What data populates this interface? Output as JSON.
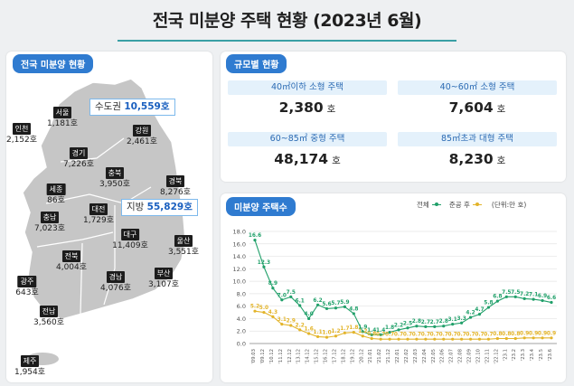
{
  "title": "전국 미분양 주택 현황 (2023년 6월)",
  "map_panel": {
    "label": "전국 미분양 현황",
    "regions": [
      {
        "name": "서울",
        "value": "1,181호"
      },
      {
        "name": "인천",
        "value": "2,152호"
      },
      {
        "name": "강원",
        "value": "2,461호"
      },
      {
        "name": "경기",
        "value": "7,226호"
      },
      {
        "name": "충북",
        "value": "3,950호"
      },
      {
        "name": "세종",
        "value": "86호"
      },
      {
        "name": "경북",
        "value": "8,276호"
      },
      {
        "name": "충남",
        "value": "7,023호"
      },
      {
        "name": "대전",
        "value": "1,729호"
      },
      {
        "name": "대구",
        "value": "11,409호"
      },
      {
        "name": "울산",
        "value": "3,551호"
      },
      {
        "name": "전북",
        "value": "4,004호"
      },
      {
        "name": "경남",
        "value": "4,076호"
      },
      {
        "name": "부산",
        "value": "3,107호"
      },
      {
        "name": "광주",
        "value": "643호"
      },
      {
        "name": "전남",
        "value": "3,560호"
      },
      {
        "name": "제주",
        "value": "1,954호"
      }
    ],
    "capital": {
      "name": "수도권",
      "value": "10,559호"
    },
    "provincial": {
      "name": "지방",
      "value": "55,829호"
    }
  },
  "size_panel": {
    "label": "규모별 현황",
    "cells": [
      {
        "label": "40㎡이하 소형 주택",
        "value": "2,380",
        "unit": "호"
      },
      {
        "label": "40~60㎡ 소형 주택",
        "value": "7,604",
        "unit": "호"
      },
      {
        "label": "60~85㎡ 중형 주택",
        "value": "48,174",
        "unit": "호"
      },
      {
        "label": "85㎡초과 대형 주택",
        "value": "8,230",
        "unit": "호"
      }
    ]
  },
  "chart_panel": {
    "label": "미분양 주택수",
    "legend": {
      "total": "전체",
      "completed": "준공 후",
      "unit": "(단위:만 호)"
    }
  },
  "colors": {
    "total": "#21a06a",
    "completed": "#e3b42a",
    "accent": "#2f7bd0"
  },
  "chart_data": {
    "type": "line",
    "x": [
      "'09.03",
      "'09.12",
      "'10.12",
      "'11.12",
      "'12.12",
      "'13.12",
      "'14.12",
      "'15.12",
      "'16.12",
      "'17.12",
      "'18.12",
      "'19.12",
      "'20.12",
      "'21.01",
      "'21.02",
      "'21.12",
      "'22.01",
      "'22.02",
      "'22.03",
      "'22.04",
      "'22.05",
      "'22.06",
      "'22.07",
      "'22.08",
      "'22.09",
      "'22.10",
      "'22.11",
      "'22.12",
      "'23.1",
      "'23.2",
      "'23.3",
      "'23.4",
      "'23.5",
      "'23.6"
    ],
    "series": [
      {
        "name": "전체",
        "values": [
          16.6,
          12.3,
          8.9,
          7.0,
          7.5,
          6.1,
          4.0,
          6.2,
          5.6,
          5.7,
          5.9,
          4.8,
          1.9,
          1.4,
          1.4,
          1.8,
          2.2,
          2.5,
          2.8,
          2.7,
          2.7,
          2.8,
          3.1,
          3.3,
          4.2,
          4.7,
          5.8,
          6.8,
          7.5,
          7.5,
          7.2,
          7.1,
          6.9,
          6.6
        ],
        "labels": [
          "16.6",
          "12.3",
          "8.9",
          "7.0",
          "7.5",
          "6.1",
          "4.0",
          "6.2",
          "5.6",
          "5.7",
          "5.9",
          "4.8",
          "1.9",
          "1.4",
          "1.4",
          "1.8",
          "2.2",
          "2.5",
          "2.8",
          "2.7",
          "2.7",
          "2.8",
          "3.1",
          "3.3",
          "4.2",
          "4.7",
          "5.8",
          "6.8",
          "7.5",
          "7.5",
          "7.2",
          "7.1",
          "6.9",
          "6.6"
        ]
      },
      {
        "name": "준공 후",
        "values": [
          5.2,
          5.0,
          4.3,
          3.1,
          2.9,
          2.2,
          1.6,
          1.1,
          1.0,
          1.2,
          1.7,
          1.8,
          1.2,
          0.8,
          0.7,
          0.7,
          0.7,
          0.7,
          0.7,
          0.7,
          0.7,
          0.7,
          0.7,
          0.7,
          0.7,
          0.7,
          0.7,
          0.8,
          0.8,
          0.8,
          0.9,
          0.9,
          0.9,
          0.9
        ],
        "labels": [
          "5.2",
          "5.0",
          "4.3",
          "3.1",
          "2.9",
          "2.2",
          "1.6",
          "1.1",
          "1.0",
          "1.2",
          "1.7",
          "1.8",
          "1.2",
          "0.8",
          "0.7",
          "0.7",
          "0.7",
          "0.7",
          "0.7",
          "0.7",
          "0.7",
          "0.7",
          "0.7",
          "0.7",
          "0.7",
          "0.7",
          "0.7",
          "0.8",
          "0.8",
          "0.8",
          "0.9",
          "0.9",
          "0.9",
          "0.9"
        ]
      }
    ],
    "y_ticks": [
      "0.0",
      "2.0",
      "4.0",
      "6.0",
      "8.0",
      "10.0",
      "12.0",
      "14.0",
      "16.0",
      "18.0"
    ],
    "ylim": [
      0,
      18
    ],
    "grid": true,
    "legend_position": "top-right"
  }
}
